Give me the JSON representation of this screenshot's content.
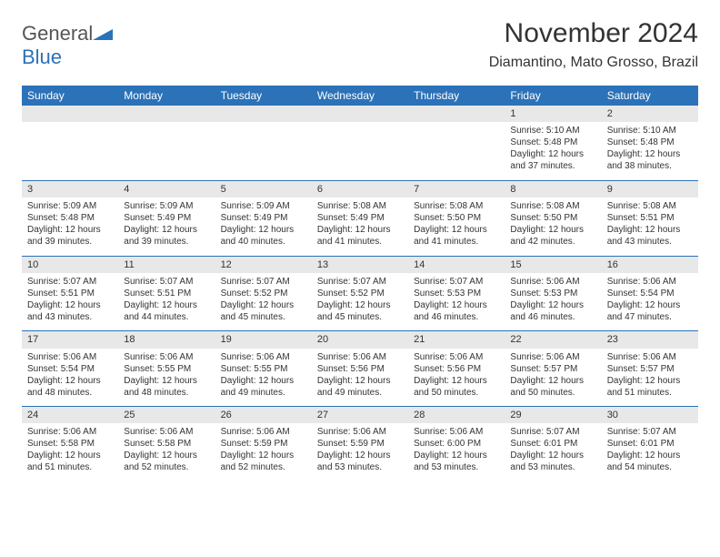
{
  "brand": {
    "general": "General",
    "blue": "Blue"
  },
  "title": "November 2024",
  "location": "Diamantino, Mato Grosso, Brazil",
  "colors": {
    "accent": "#2b72b8",
    "header_bg": "#2b72b8",
    "header_text": "#ffffff",
    "daynum_bg": "#e8e8e8",
    "text": "#333333",
    "bg": "#ffffff"
  },
  "weekdays": [
    "Sunday",
    "Monday",
    "Tuesday",
    "Wednesday",
    "Thursday",
    "Friday",
    "Saturday"
  ],
  "weeks": [
    [
      null,
      null,
      null,
      null,
      null,
      {
        "n": "1",
        "sr": "Sunrise: 5:10 AM",
        "ss": "Sunset: 5:48 PM",
        "d1": "Daylight: 12 hours",
        "d2": "and 37 minutes."
      },
      {
        "n": "2",
        "sr": "Sunrise: 5:10 AM",
        "ss": "Sunset: 5:48 PM",
        "d1": "Daylight: 12 hours",
        "d2": "and 38 minutes."
      }
    ],
    [
      {
        "n": "3",
        "sr": "Sunrise: 5:09 AM",
        "ss": "Sunset: 5:48 PM",
        "d1": "Daylight: 12 hours",
        "d2": "and 39 minutes."
      },
      {
        "n": "4",
        "sr": "Sunrise: 5:09 AM",
        "ss": "Sunset: 5:49 PM",
        "d1": "Daylight: 12 hours",
        "d2": "and 39 minutes."
      },
      {
        "n": "5",
        "sr": "Sunrise: 5:09 AM",
        "ss": "Sunset: 5:49 PM",
        "d1": "Daylight: 12 hours",
        "d2": "and 40 minutes."
      },
      {
        "n": "6",
        "sr": "Sunrise: 5:08 AM",
        "ss": "Sunset: 5:49 PM",
        "d1": "Daylight: 12 hours",
        "d2": "and 41 minutes."
      },
      {
        "n": "7",
        "sr": "Sunrise: 5:08 AM",
        "ss": "Sunset: 5:50 PM",
        "d1": "Daylight: 12 hours",
        "d2": "and 41 minutes."
      },
      {
        "n": "8",
        "sr": "Sunrise: 5:08 AM",
        "ss": "Sunset: 5:50 PM",
        "d1": "Daylight: 12 hours",
        "d2": "and 42 minutes."
      },
      {
        "n": "9",
        "sr": "Sunrise: 5:08 AM",
        "ss": "Sunset: 5:51 PM",
        "d1": "Daylight: 12 hours",
        "d2": "and 43 minutes."
      }
    ],
    [
      {
        "n": "10",
        "sr": "Sunrise: 5:07 AM",
        "ss": "Sunset: 5:51 PM",
        "d1": "Daylight: 12 hours",
        "d2": "and 43 minutes."
      },
      {
        "n": "11",
        "sr": "Sunrise: 5:07 AM",
        "ss": "Sunset: 5:51 PM",
        "d1": "Daylight: 12 hours",
        "d2": "and 44 minutes."
      },
      {
        "n": "12",
        "sr": "Sunrise: 5:07 AM",
        "ss": "Sunset: 5:52 PM",
        "d1": "Daylight: 12 hours",
        "d2": "and 45 minutes."
      },
      {
        "n": "13",
        "sr": "Sunrise: 5:07 AM",
        "ss": "Sunset: 5:52 PM",
        "d1": "Daylight: 12 hours",
        "d2": "and 45 minutes."
      },
      {
        "n": "14",
        "sr": "Sunrise: 5:07 AM",
        "ss": "Sunset: 5:53 PM",
        "d1": "Daylight: 12 hours",
        "d2": "and 46 minutes."
      },
      {
        "n": "15",
        "sr": "Sunrise: 5:06 AM",
        "ss": "Sunset: 5:53 PM",
        "d1": "Daylight: 12 hours",
        "d2": "and 46 minutes."
      },
      {
        "n": "16",
        "sr": "Sunrise: 5:06 AM",
        "ss": "Sunset: 5:54 PM",
        "d1": "Daylight: 12 hours",
        "d2": "and 47 minutes."
      }
    ],
    [
      {
        "n": "17",
        "sr": "Sunrise: 5:06 AM",
        "ss": "Sunset: 5:54 PM",
        "d1": "Daylight: 12 hours",
        "d2": "and 48 minutes."
      },
      {
        "n": "18",
        "sr": "Sunrise: 5:06 AM",
        "ss": "Sunset: 5:55 PM",
        "d1": "Daylight: 12 hours",
        "d2": "and 48 minutes."
      },
      {
        "n": "19",
        "sr": "Sunrise: 5:06 AM",
        "ss": "Sunset: 5:55 PM",
        "d1": "Daylight: 12 hours",
        "d2": "and 49 minutes."
      },
      {
        "n": "20",
        "sr": "Sunrise: 5:06 AM",
        "ss": "Sunset: 5:56 PM",
        "d1": "Daylight: 12 hours",
        "d2": "and 49 minutes."
      },
      {
        "n": "21",
        "sr": "Sunrise: 5:06 AM",
        "ss": "Sunset: 5:56 PM",
        "d1": "Daylight: 12 hours",
        "d2": "and 50 minutes."
      },
      {
        "n": "22",
        "sr": "Sunrise: 5:06 AM",
        "ss": "Sunset: 5:57 PM",
        "d1": "Daylight: 12 hours",
        "d2": "and 50 minutes."
      },
      {
        "n": "23",
        "sr": "Sunrise: 5:06 AM",
        "ss": "Sunset: 5:57 PM",
        "d1": "Daylight: 12 hours",
        "d2": "and 51 minutes."
      }
    ],
    [
      {
        "n": "24",
        "sr": "Sunrise: 5:06 AM",
        "ss": "Sunset: 5:58 PM",
        "d1": "Daylight: 12 hours",
        "d2": "and 51 minutes."
      },
      {
        "n": "25",
        "sr": "Sunrise: 5:06 AM",
        "ss": "Sunset: 5:58 PM",
        "d1": "Daylight: 12 hours",
        "d2": "and 52 minutes."
      },
      {
        "n": "26",
        "sr": "Sunrise: 5:06 AM",
        "ss": "Sunset: 5:59 PM",
        "d1": "Daylight: 12 hours",
        "d2": "and 52 minutes."
      },
      {
        "n": "27",
        "sr": "Sunrise: 5:06 AM",
        "ss": "Sunset: 5:59 PM",
        "d1": "Daylight: 12 hours",
        "d2": "and 53 minutes."
      },
      {
        "n": "28",
        "sr": "Sunrise: 5:06 AM",
        "ss": "Sunset: 6:00 PM",
        "d1": "Daylight: 12 hours",
        "d2": "and 53 minutes."
      },
      {
        "n": "29",
        "sr": "Sunrise: 5:07 AM",
        "ss": "Sunset: 6:01 PM",
        "d1": "Daylight: 12 hours",
        "d2": "and 53 minutes."
      },
      {
        "n": "30",
        "sr": "Sunrise: 5:07 AM",
        "ss": "Sunset: 6:01 PM",
        "d1": "Daylight: 12 hours",
        "d2": "and 54 minutes."
      }
    ]
  ]
}
